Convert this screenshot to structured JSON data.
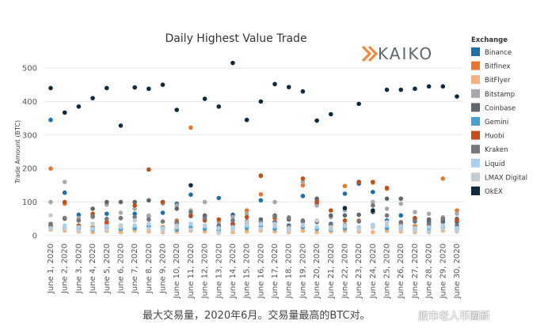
{
  "chart_data": {
    "type": "scatter",
    "title": "Daily Highest Value Trade",
    "ylabel": "Trade Amount (BTC)",
    "xlabel": "",
    "ylim": [
      0,
      520
    ],
    "yticks": [
      0,
      100,
      200,
      300,
      400,
      500
    ],
    "grid": "horizontal",
    "legend_title": "Exchange",
    "legend_position": "right",
    "brand": "KAIKO",
    "categories": [
      "June 1, 2020",
      "June 2, 2020",
      "June 3, 2020",
      "June 4, 2020",
      "June 5, 2020",
      "June 6, 2020",
      "June 7, 2020",
      "June 8, 2020",
      "June 9, 2020",
      "June 10, 2020",
      "June 11, 2020",
      "June 12, 2020",
      "June 13, 2020",
      "June 14, 2020",
      "June 15, 2020",
      "June 16, 2020",
      "June 17, 2020",
      "June 18, 2020",
      "June 19, 2020",
      "June 20, 2020",
      "June 21, 2020",
      "June 22, 2020",
      "June 23, 2020",
      "June 24, 2020",
      "June 25, 2020",
      "June 26, 2020",
      "June 27, 2020",
      "June 28, 2020",
      "June 29, 2020",
      "June 30, 2020"
    ],
    "series": [
      {
        "name": "Binance",
        "color": "#1f6fa8",
        "values": [
          345,
          128,
          62,
          55,
          65,
          52,
          65,
          58,
          68,
          95,
          122,
          58,
          112,
          62,
          28,
          105,
          40,
          30,
          118,
          95,
          35,
          125,
          155,
          130,
          45,
          60,
          45,
          42,
          45,
          40
        ]
      },
      {
        "name": "Bitfinex",
        "color": "#e8772e",
        "values": [
          200,
          95,
          45,
          25,
          35,
          18,
          30,
          28,
          25,
          45,
          322,
          50,
          20,
          30,
          75,
          123,
          50,
          25,
          150,
          105,
          30,
          148,
          45,
          158,
          140,
          38,
          28,
          35,
          170,
          75
        ]
      },
      {
        "name": "BitFlyer",
        "color": "#f5b27a",
        "values": [
          18,
          15,
          12,
          10,
          14,
          10,
          15,
          12,
          10,
          12,
          15,
          12,
          8,
          10,
          12,
          15,
          12,
          10,
          14,
          10,
          12,
          15,
          12,
          10,
          14,
          12,
          10,
          12,
          15,
          12
        ]
      },
      {
        "name": "Bitstamp",
        "color": "#a7a9ac",
        "values": [
          100,
          160,
          52,
          55,
          92,
          68,
          80,
          60,
          95,
          90,
          75,
          100,
          40,
          55,
          65,
          180,
          100,
          55,
          160,
          90,
          55,
          75,
          160,
          100,
          80,
          95,
          70,
          65,
          55,
          65
        ]
      },
      {
        "name": "Coinbase",
        "color": "#5d6770",
        "values": [
          32,
          52,
          28,
          80,
          100,
          100,
          100,
          105,
          100,
          80,
          58,
          60,
          28,
          35,
          42,
          48,
          60,
          48,
          42,
          110,
          60,
          60,
          62,
          70,
          110,
          110,
          52,
          48,
          40,
          50
        ]
      },
      {
        "name": "Gemini",
        "color": "#4a9fd1",
        "values": [
          25,
          22,
          20,
          18,
          22,
          20,
          22,
          28,
          20,
          18,
          25,
          20,
          15,
          18,
          22,
          28,
          20,
          18,
          25,
          20,
          18,
          22,
          25,
          28,
          22,
          20,
          18,
          22,
          25,
          20
        ]
      },
      {
        "name": "Huobi",
        "color": "#c24f1a",
        "values": [
          28,
          100,
          30,
          65,
          40,
          30,
          90,
          197,
          100,
          35,
          60,
          45,
          48,
          35,
          55,
          178,
          55,
          20,
          170,
          100,
          75,
          45,
          160,
          160,
          142,
          30,
          52,
          30,
          50,
          45
        ]
      },
      {
        "name": "Kraken",
        "color": "#77787b",
        "values": [
          35,
          50,
          45,
          58,
          50,
          52,
          55,
          48,
          42,
          40,
          70,
          52,
          30,
          45,
          38,
          40,
          58,
          52,
          45,
          40,
          32,
          32,
          42,
          90,
          60,
          40,
          42,
          35,
          50,
          30
        ]
      },
      {
        "name": "Liquid",
        "color": "#a9d0ee",
        "values": [
          22,
          30,
          25,
          20,
          28,
          25,
          30,
          35,
          22,
          30,
          35,
          28,
          22,
          25,
          30,
          35,
          28,
          22,
          32,
          25,
          20,
          28,
          25,
          32,
          30,
          28,
          22,
          25,
          30,
          22
        ]
      },
      {
        "name": "LMAX Digital",
        "color": "#c3cbd3",
        "values": [
          60,
          20,
          15,
          35,
          18,
          30,
          45,
          20,
          15,
          25,
          18,
          30,
          8,
          18,
          40,
          20,
          35,
          15,
          30,
          45,
          25,
          30,
          18,
          25,
          40,
          18,
          15,
          10,
          20,
          12
        ]
      },
      {
        "name": "OkEX",
        "color": "#0e2a3d",
        "values": [
          440,
          367,
          385,
          410,
          440,
          328,
          442,
          438,
          450,
          375,
          150,
          408,
          385,
          515,
          345,
          400,
          452,
          443,
          430,
          343,
          362,
          82,
          393,
          75,
          435,
          435,
          438,
          445,
          445,
          415
        ]
      }
    ]
  },
  "caption": "最大交易量，2020年6月。交易量最高的BTC对。",
  "watermark": "股市老人币圈新"
}
